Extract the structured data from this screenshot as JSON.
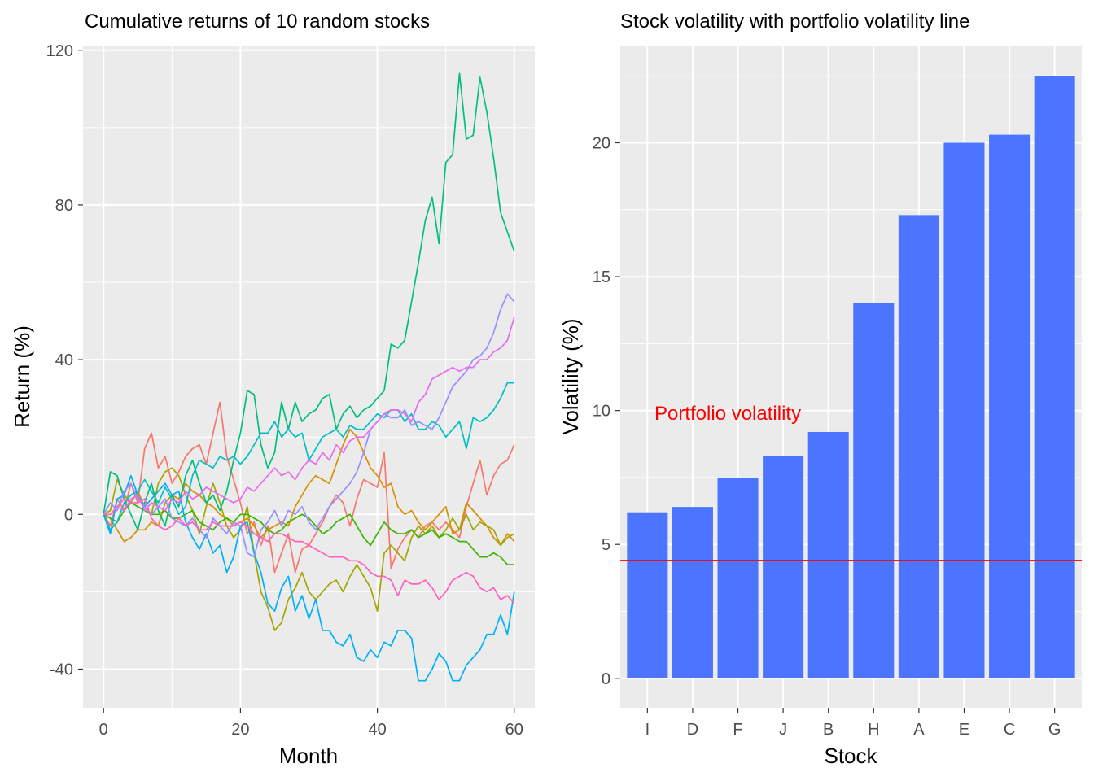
{
  "chart_data": [
    {
      "type": "line",
      "title": "Cumulative returns of 10 random stocks",
      "xlabel": "Month",
      "ylabel": "Return (%)",
      "xlim": [
        -3,
        63
      ],
      "ylim": [
        -50,
        121
      ],
      "x_ticks": [
        0,
        20,
        40,
        60
      ],
      "y_ticks": [
        -40,
        0,
        40,
        80,
        120
      ],
      "x_tick_labels": [
        "0",
        "20",
        "40",
        "60"
      ],
      "y_tick_labels": [
        "-40",
        "0",
        "40",
        "80",
        "120"
      ],
      "grid": true,
      "legend": "none",
      "series": [
        {
          "color": "#F8766D",
          "values": [
            0,
            -3,
            4,
            1,
            8,
            3,
            17,
            21,
            12,
            15,
            8,
            11,
            15,
            17,
            18,
            13,
            21,
            29,
            15,
            9,
            3,
            -5,
            -2,
            -8,
            -3,
            -15,
            -10,
            -5,
            -15,
            -9,
            -8,
            -5,
            -2,
            2,
            5,
            3,
            -3,
            4,
            9,
            8,
            7,
            16,
            -14,
            -9,
            -6,
            -4,
            -6,
            -3,
            -2,
            -4,
            -2,
            -4,
            -6,
            2,
            8,
            14,
            5,
            10,
            13,
            14,
            18
          ]
        },
        {
          "color": "#D89000",
          "values": [
            0,
            -1,
            -4,
            -7,
            -6,
            -4,
            -4,
            -2,
            -3,
            3,
            5,
            4,
            8,
            6,
            5,
            3,
            2,
            0,
            -1,
            -3,
            -2,
            -1,
            -3,
            -6,
            -4,
            -3,
            -2,
            -3,
            2,
            5,
            8,
            10,
            9,
            8,
            13,
            18,
            22,
            20,
            16,
            12,
            10,
            7,
            8,
            2,
            0,
            1,
            -2,
            -4,
            -2,
            0,
            2,
            -5,
            -4,
            3,
            1,
            -1,
            -3,
            -6,
            -8,
            -5,
            -7
          ]
        },
        {
          "color": "#A3A500",
          "values": [
            0,
            1,
            9,
            5,
            3,
            6,
            2,
            0,
            8,
            11,
            12,
            10,
            5,
            1,
            -5,
            2,
            8,
            3,
            -3,
            -6,
            -4,
            2,
            -10,
            -20,
            -24,
            -30,
            -28,
            -22,
            -19,
            -15,
            -20,
            -22,
            -20,
            -18,
            -17,
            -20,
            -16,
            -13,
            -16,
            -19,
            -25,
            -10,
            -8,
            -10,
            -12,
            -6,
            -3,
            -5,
            -3,
            -6,
            -4,
            -1,
            -4,
            0,
            -4,
            -2,
            -3,
            -4,
            -8,
            -6,
            -5
          ]
        },
        {
          "color": "#39B600",
          "values": [
            0,
            -1,
            -2,
            1,
            3,
            2,
            1,
            0,
            0,
            1,
            -1,
            -1,
            0,
            1,
            -2,
            -3,
            -4,
            -2,
            -1,
            -2,
            0,
            0,
            -1,
            -2,
            -4,
            -5,
            -4,
            -2,
            -1,
            0,
            -1,
            -3,
            -5,
            -4,
            -2,
            -1,
            0,
            -3,
            -6,
            -8,
            -5,
            -2,
            -4,
            -5,
            -5,
            -4,
            -6,
            -5,
            -4,
            -6,
            -5,
            -6,
            -7,
            -7,
            -9,
            -11,
            -11,
            -10,
            -11,
            -13,
            -13
          ]
        },
        {
          "color": "#00BF7D",
          "values": [
            0,
            11,
            10,
            4,
            0,
            -4,
            3,
            8,
            1,
            -3,
            5,
            2,
            10,
            14,
            8,
            3,
            5,
            1,
            6,
            14,
            21,
            32,
            31,
            18,
            12,
            16,
            29,
            22,
            29,
            24,
            26,
            27,
            30,
            31,
            22,
            26,
            28,
            25,
            27,
            28,
            30,
            32,
            44,
            43,
            45,
            55,
            65,
            76,
            82,
            70,
            91,
            93,
            114,
            97,
            98,
            113,
            104,
            92,
            78,
            73,
            68
          ]
        },
        {
          "color": "#00BFC4",
          "values": [
            0,
            -4,
            -2,
            3,
            5,
            6,
            9,
            6,
            3,
            7,
            4,
            0,
            2,
            10,
            14,
            13,
            12,
            15,
            14,
            15,
            13,
            15,
            18,
            21,
            21,
            24,
            20,
            22,
            20,
            21,
            14,
            17,
            20,
            21,
            22,
            20,
            23,
            22,
            22,
            24,
            26,
            25,
            27,
            27,
            24,
            26,
            22,
            22,
            24,
            23,
            20,
            22,
            24,
            17,
            25,
            24,
            25,
            27,
            30,
            34,
            34
          ]
        },
        {
          "color": "#00B0F6",
          "values": [
            0,
            -5,
            4,
            5,
            10,
            5,
            2,
            4,
            6,
            8,
            5,
            6,
            -2,
            -6,
            -9,
            -5,
            -10,
            -8,
            -15,
            -11,
            -3,
            -2,
            -10,
            -15,
            -23,
            -25,
            -19,
            -16,
            -25,
            -21,
            -27,
            -22,
            -30,
            -30,
            -33,
            -34,
            -31,
            -37,
            -38,
            -35,
            -37,
            -33,
            -34,
            -30,
            -30,
            -32,
            -43,
            -43,
            -40,
            -36,
            -38,
            -43,
            -43,
            -39,
            -37,
            -35,
            -31,
            -31,
            -26,
            -31,
            -20
          ]
        },
        {
          "color": "#9590FF",
          "values": [
            0,
            3,
            1,
            6,
            8,
            4,
            2,
            0,
            2,
            4,
            -1,
            -2,
            -3,
            -1,
            -4,
            -6,
            -1,
            -3,
            -5,
            -2,
            -3,
            -10,
            -11,
            -4,
            -2,
            1,
            -3,
            1,
            0,
            2,
            -2,
            -4,
            -1,
            2,
            4,
            6,
            8,
            11,
            16,
            22,
            24,
            26,
            25,
            25,
            27,
            23,
            24,
            23,
            22,
            25,
            29,
            33,
            35,
            37,
            40,
            41,
            43,
            47,
            53,
            57,
            55
          ]
        },
        {
          "color": "#E76BF3",
          "values": [
            0,
            0,
            2,
            1,
            4,
            5,
            1,
            3,
            2,
            1,
            4,
            3,
            6,
            4,
            5,
            7,
            6,
            5,
            4,
            3,
            4,
            7,
            6,
            8,
            10,
            12,
            10,
            11,
            9,
            12,
            14,
            13,
            16,
            14,
            18,
            16,
            19,
            20,
            20,
            22,
            24,
            26,
            27,
            27,
            26,
            24,
            29,
            31,
            35,
            36,
            37,
            38,
            37,
            38,
            38,
            40,
            40,
            42,
            43,
            45,
            51
          ]
        },
        {
          "color": "#FF62BC",
          "values": [
            0,
            0,
            2,
            4,
            3,
            3,
            4,
            -1,
            -3,
            -4,
            -3,
            -1,
            -3,
            -2,
            -4,
            -4,
            -2,
            -3,
            -3,
            -3,
            -2,
            -3,
            -5,
            -6,
            -7,
            -5,
            -5,
            -6,
            -7,
            -7,
            -8,
            -9,
            -10,
            -11,
            -11,
            -11,
            -12,
            -12,
            -13,
            -15,
            -16,
            -16,
            -17,
            -21,
            -17,
            -18,
            -18,
            -17,
            -19,
            -22,
            -20,
            -17,
            -16,
            -15,
            -16,
            -19,
            -20,
            -19,
            -22,
            -21,
            -23
          ]
        }
      ]
    },
    {
      "type": "bar",
      "title": "Stock volatility with portfolio volatility line",
      "xlabel": "Stock",
      "ylabel": "Volatility (%)",
      "categories": [
        "I",
        "D",
        "F",
        "J",
        "B",
        "H",
        "A",
        "E",
        "C",
        "G"
      ],
      "values": [
        6.2,
        6.4,
        7.5,
        8.3,
        9.2,
        14.0,
        17.3,
        20.0,
        20.3,
        22.5
      ],
      "ylim": [
        -1.1,
        23.6
      ],
      "y_ticks": [
        0,
        5,
        10,
        15,
        20
      ],
      "y_tick_labels": [
        "0",
        "5",
        "10",
        "15",
        "20"
      ],
      "bar_color": "#4C75FF",
      "hline": {
        "value": 4.4,
        "color": "#FF0000"
      },
      "annotation": {
        "text": "Portfolio volatility",
        "color": "#FF0000"
      },
      "grid": true,
      "legend": "none"
    }
  ]
}
